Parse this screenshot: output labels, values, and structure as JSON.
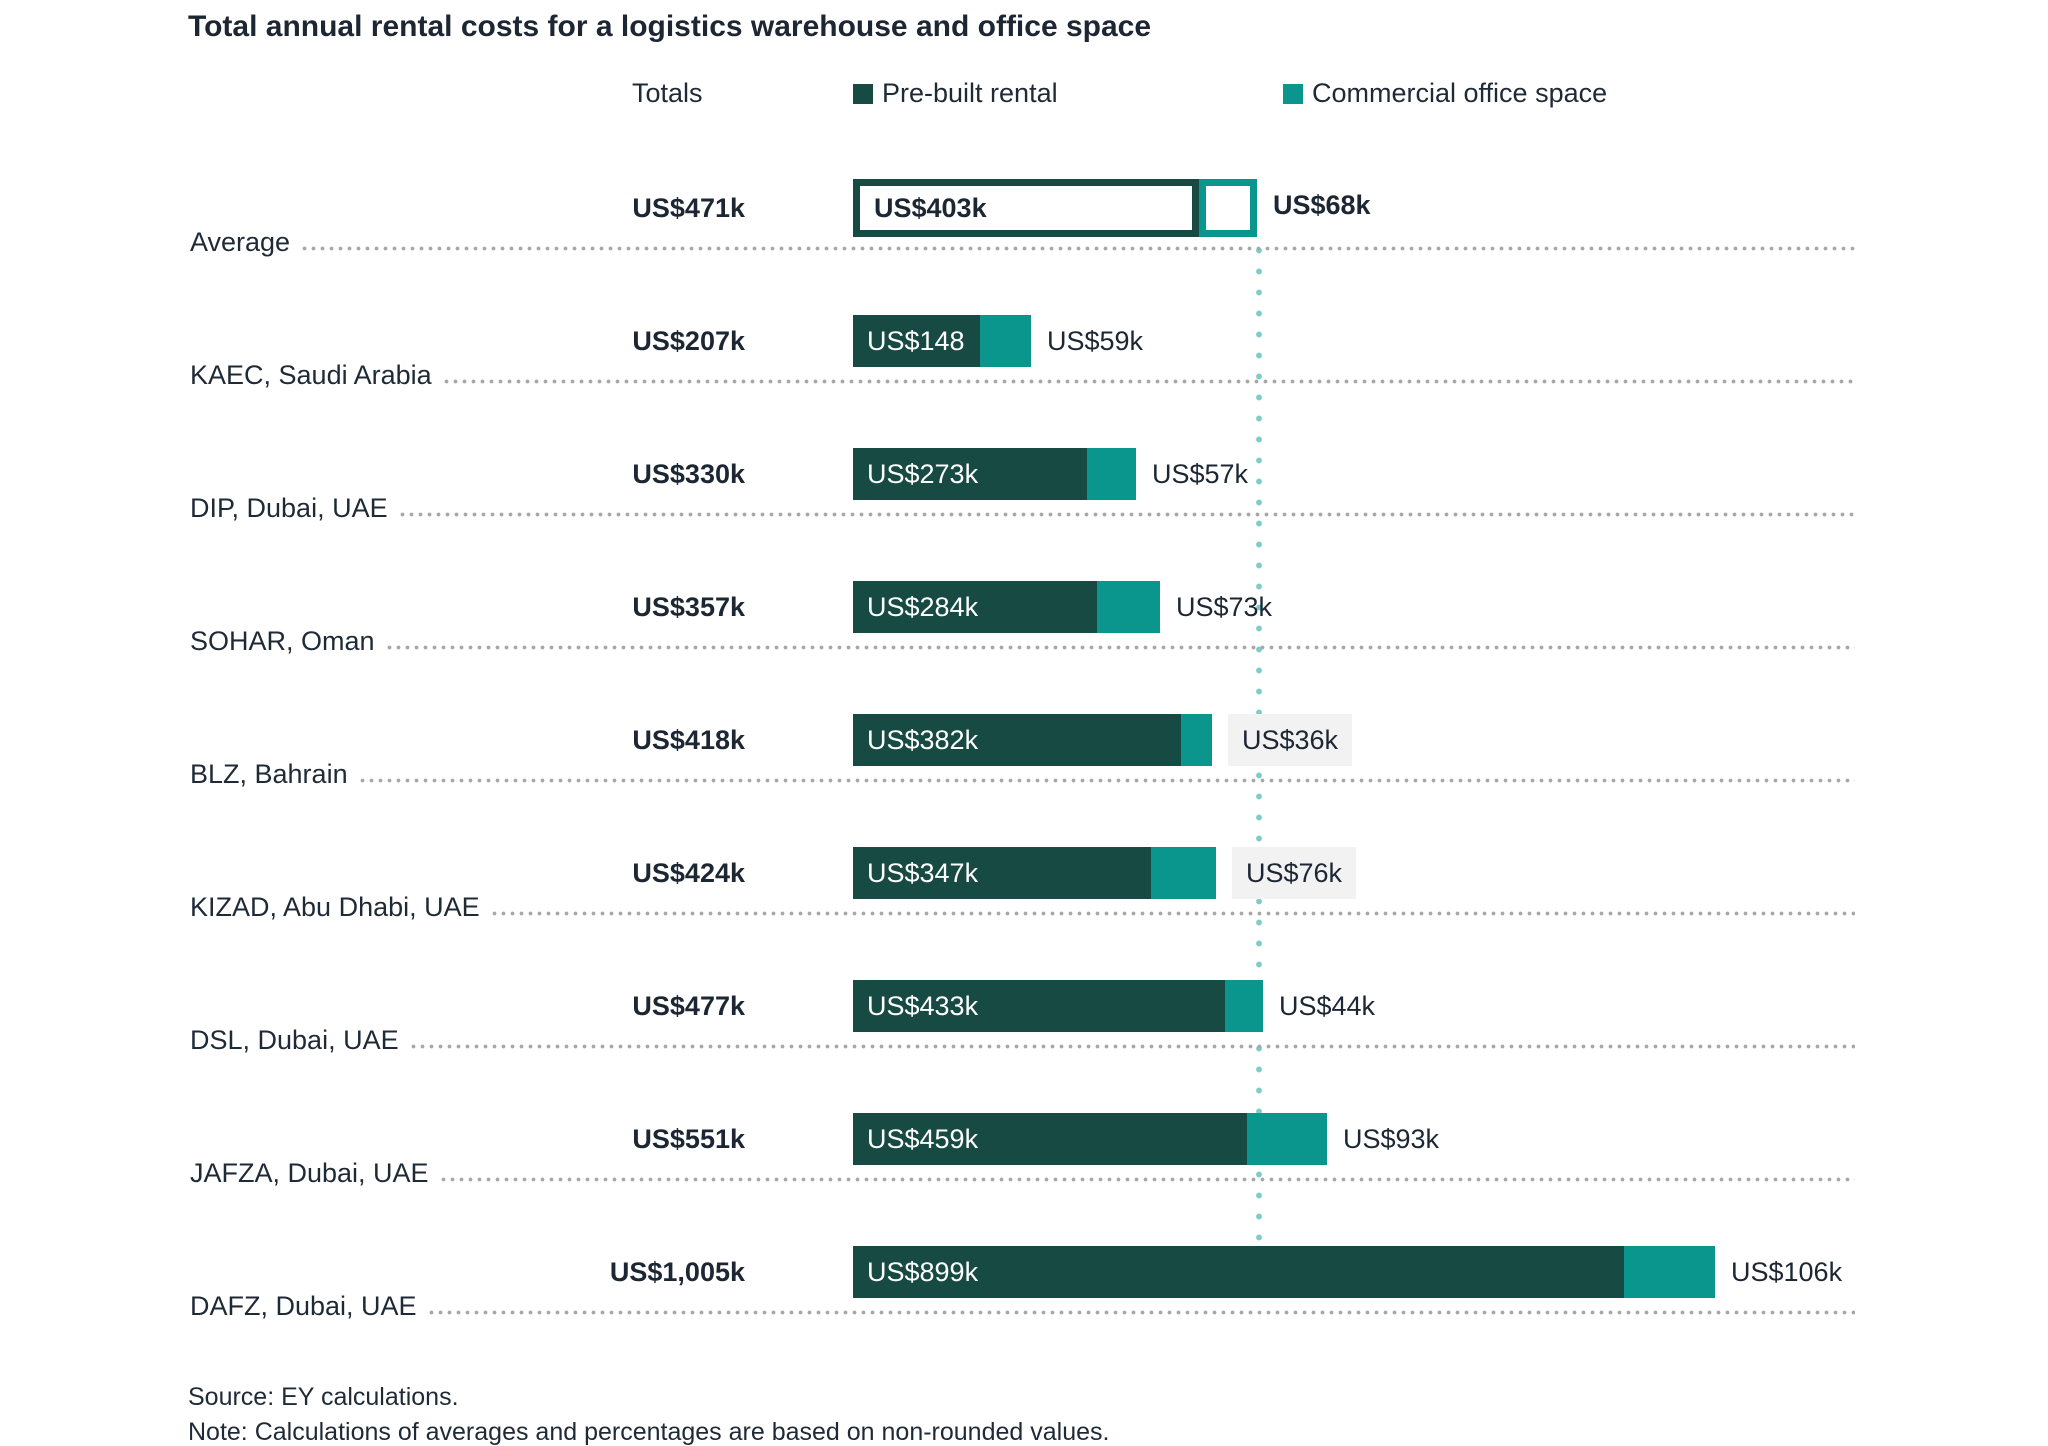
{
  "title": "Total annual rental costs for a logistics warehouse and office space",
  "legend": {
    "totals_label": "Totals",
    "series": [
      {
        "name": "Pre-built rental",
        "swatch": "dark-teal-square-icon",
        "color": "#174A43"
      },
      {
        "name": "Commercial office space",
        "swatch": "teal-square-icon",
        "color": "#0A958D"
      }
    ]
  },
  "chart_data": {
    "type": "bar",
    "orientation": "horizontal",
    "stacked": true,
    "unit": "US$ thousands",
    "series_names": [
      "Pre-built rental",
      "Commercial office space"
    ],
    "reference_line": {
      "at_total": 471,
      "style": "vertical-dotted",
      "color": "#7CCDC8"
    },
    "rows": [
      {
        "label": "Average",
        "total": 471,
        "total_label": "US$471k",
        "prebuilt": 403,
        "prebuilt_label": "US$403k",
        "office": 68,
        "office_label": "US$68k",
        "style": "outlined",
        "office_label_bg": false
      },
      {
        "label": "KAEC, Saudi Arabia",
        "total": 207,
        "total_label": "US$207k",
        "prebuilt": 148,
        "prebuilt_label": "US$148",
        "office": 59,
        "office_label": "US$59k",
        "style": "solid",
        "office_label_bg": false
      },
      {
        "label": "DIP, Dubai, UAE",
        "total": 330,
        "total_label": "US$330k",
        "prebuilt": 273,
        "prebuilt_label": "US$273k",
        "office": 57,
        "office_label": "US$57k",
        "style": "solid",
        "office_label_bg": false
      },
      {
        "label": "SOHAR, Oman",
        "total": 357,
        "total_label": "US$357k",
        "prebuilt": 284,
        "prebuilt_label": "US$284k",
        "office": 73,
        "office_label": "US$73k",
        "style": "solid",
        "office_label_bg": false
      },
      {
        "label": "BLZ, Bahrain",
        "total": 418,
        "total_label": "US$418k",
        "prebuilt": 382,
        "prebuilt_label": "US$382k",
        "office": 36,
        "office_label": "US$36k",
        "style": "solid",
        "office_label_bg": true
      },
      {
        "label": "KIZAD, Abu Dhabi, UAE",
        "total": 424,
        "total_label": "US$424k",
        "prebuilt": 347,
        "prebuilt_label": "US$347k",
        "office": 76,
        "office_label": "US$76k",
        "style": "solid",
        "office_label_bg": true
      },
      {
        "label": "DSL, Dubai, UAE",
        "total": 477,
        "total_label": "US$477k",
        "prebuilt": 433,
        "prebuilt_label": "US$433k",
        "office": 44,
        "office_label": "US$44k",
        "style": "solid",
        "office_label_bg": false
      },
      {
        "label": "JAFZA, Dubai, UAE",
        "total": 551,
        "total_label": "US$551k",
        "prebuilt": 459,
        "prebuilt_label": "US$459k",
        "office": 93,
        "office_label": "US$93k",
        "style": "solid",
        "office_label_bg": false
      },
      {
        "label": "DAFZ, Dubai, UAE",
        "total": 1005,
        "total_label": "US$1,005k",
        "prebuilt": 899,
        "prebuilt_label": "US$899k",
        "office": 106,
        "office_label": "US$106k",
        "style": "solid",
        "office_label_bg": false
      }
    ]
  },
  "footer": {
    "source": "Source: EY calculations.",
    "note": "Note: Calculations of averages and percentages are based on non-rounded values."
  },
  "colors": {
    "prebuilt": "#174A43",
    "office": "#0A958D",
    "text": "#1C2733",
    "leader_dots": "#A6A6A6",
    "reference_dots": "#7CCDC8",
    "office_label_bg": "#F2F2F2"
  }
}
